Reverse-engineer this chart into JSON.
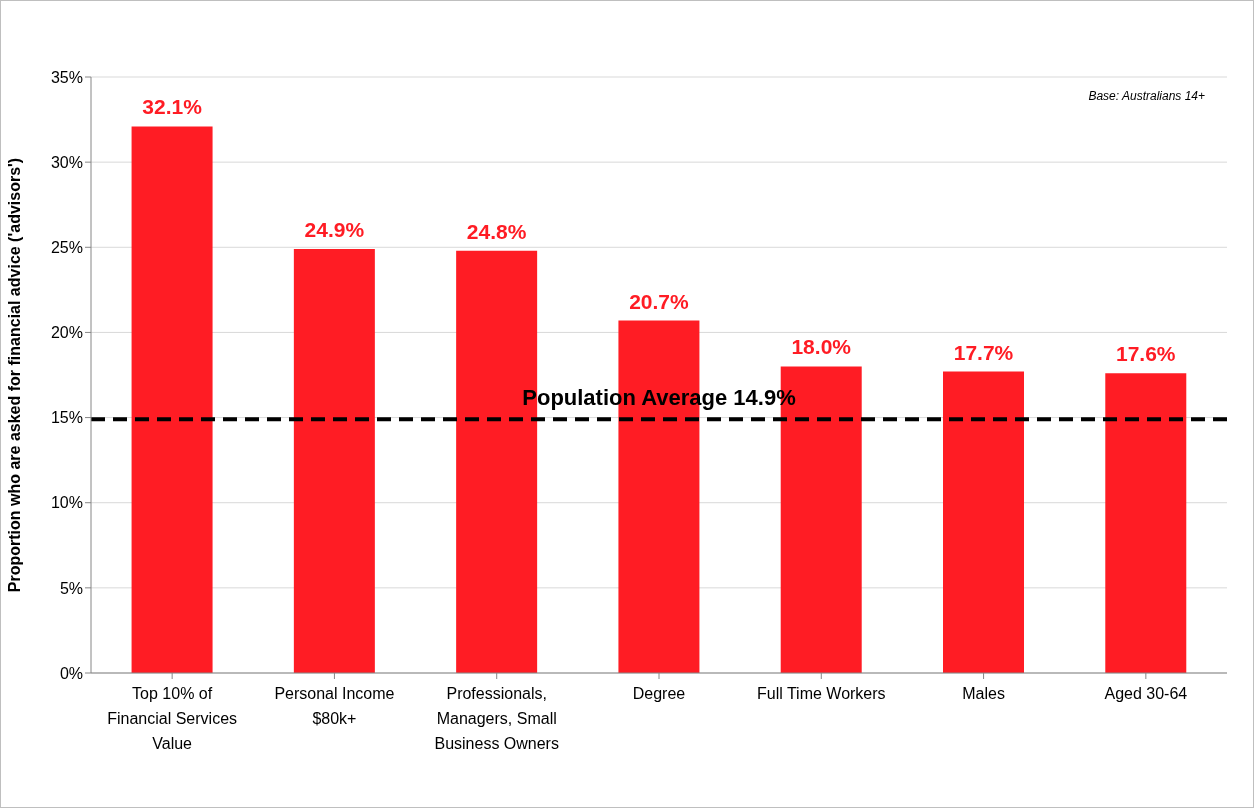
{
  "chart_data": {
    "type": "bar",
    "ylabel": "Proportion who are asked for financial advice ('advisors')",
    "categories": [
      "Top 10% of Financial Services Value",
      "Personal Income $80k+",
      "Professionals, Managers, Small Business Owners",
      "Degree",
      "Full Time Workers",
      "Males",
      "Aged 30-64"
    ],
    "values": [
      32.1,
      24.9,
      24.8,
      20.7,
      18.0,
      17.7,
      17.6
    ],
    "value_labels": [
      "32.1%",
      "24.9%",
      "24.8%",
      "20.7%",
      "18.0%",
      "17.7%",
      "17.6%"
    ],
    "color": "#ff1c24",
    "ylim": [
      0,
      35
    ],
    "yticks": [
      {
        "value": 0,
        "label": "0%"
      },
      {
        "value": 5,
        "label": "5%"
      },
      {
        "value": 10,
        "label": "10%"
      },
      {
        "value": 15,
        "label": "15%"
      },
      {
        "value": 20,
        "label": "20%"
      },
      {
        "value": 25,
        "label": "25%"
      },
      {
        "value": 30,
        "label": "30%"
      },
      {
        "value": 35,
        "label": "35%"
      }
    ],
    "grid": "y",
    "legend": false,
    "ref_lines": [
      {
        "axis": "y",
        "value": 14.9,
        "label": "Population Average 14.9%",
        "color": "#000000",
        "line_style": "dashed"
      }
    ],
    "annotations": [
      "Base: Australians 14+"
    ]
  }
}
